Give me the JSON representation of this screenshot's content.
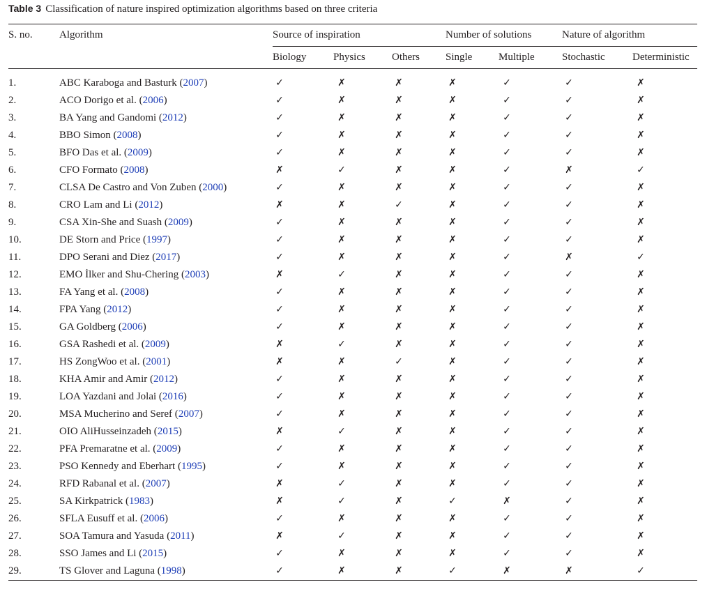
{
  "caption": {
    "label": "Table 3",
    "text": "Classification of nature inspired optimization algorithms based on three criteria"
  },
  "headers": {
    "sno": "S. no.",
    "algorithm": "Algorithm",
    "group_source": "Source of inspiration",
    "group_solutions": "Number of solutions",
    "group_nature": "Nature of algorithm",
    "biology": "Biology",
    "physics": "Physics",
    "others": "Others",
    "single": "Single",
    "multiple": "Multiple",
    "stochastic": "Stochastic",
    "deterministic": "Deterministic"
  },
  "symbols": {
    "yes": "✓",
    "no": "✗"
  },
  "colors": {
    "citation_link": "#1f3fb7",
    "text": "#231f20"
  },
  "rows": [
    {
      "sno": "1.",
      "name": "ABC Karaboga and Basturk (",
      "year": "2007",
      "close": ")",
      "marks": [
        "yes",
        "no",
        "no",
        "no",
        "yes",
        "yes",
        "no"
      ]
    },
    {
      "sno": "2.",
      "name": "ACO Dorigo et al. (",
      "year": "2006",
      "close": ")",
      "marks": [
        "yes",
        "no",
        "no",
        "no",
        "yes",
        "yes",
        "no"
      ]
    },
    {
      "sno": "3.",
      "name": "BA Yang and Gandomi (",
      "year": "2012",
      "close": ")",
      "marks": [
        "yes",
        "no",
        "no",
        "no",
        "yes",
        "yes",
        "no"
      ]
    },
    {
      "sno": "4.",
      "name": "BBO Simon (",
      "year": "2008",
      "close": ")",
      "marks": [
        "yes",
        "no",
        "no",
        "no",
        "yes",
        "yes",
        "no"
      ]
    },
    {
      "sno": "5.",
      "name": "BFO Das et al. (",
      "year": "2009",
      "close": ")",
      "marks": [
        "yes",
        "no",
        "no",
        "no",
        "yes",
        "yes",
        "no"
      ]
    },
    {
      "sno": "6.",
      "name": "CFO Formato (",
      "year": "2008",
      "close": ")",
      "marks": [
        "no",
        "yes",
        "no",
        "no",
        "yes",
        "no",
        "yes"
      ]
    },
    {
      "sno": "7.",
      "name": "CLSA De Castro and Von Zuben (",
      "year": "2000",
      "close": ")",
      "marks": [
        "yes",
        "no",
        "no",
        "no",
        "yes",
        "yes",
        "no"
      ]
    },
    {
      "sno": "8.",
      "name": "CRO Lam and Li (",
      "year": "2012",
      "close": ")",
      "marks": [
        "no",
        "no",
        "yes",
        "no",
        "yes",
        "yes",
        "no"
      ]
    },
    {
      "sno": "9.",
      "name": "CSA Xin-She and Suash (",
      "year": "2009",
      "close": ")",
      "marks": [
        "yes",
        "no",
        "no",
        "no",
        "yes",
        "yes",
        "no"
      ]
    },
    {
      "sno": "10.",
      "name": "DE Storn and Price (",
      "year": "1997",
      "close": ")",
      "marks": [
        "yes",
        "no",
        "no",
        "no",
        "yes",
        "yes",
        "no"
      ]
    },
    {
      "sno": "11.",
      "name": "DPO Serani and Diez (",
      "year": "2017",
      "close": ")",
      "marks": [
        "yes",
        "no",
        "no",
        "no",
        "yes",
        "no",
        "yes"
      ]
    },
    {
      "sno": "12.",
      "name": "EMO İlker and Shu-Chering (",
      "year": "2003",
      "close": ")",
      "marks": [
        "no",
        "yes",
        "no",
        "no",
        "yes",
        "yes",
        "no"
      ]
    },
    {
      "sno": "13.",
      "name": "FA Yang et al. (",
      "year": "2008",
      "close": ")",
      "marks": [
        "yes",
        "no",
        "no",
        "no",
        "yes",
        "yes",
        "no"
      ]
    },
    {
      "sno": "14.",
      "name": "FPA Yang (",
      "year": "2012",
      "close": ")",
      "marks": [
        "yes",
        "no",
        "no",
        "no",
        "yes",
        "yes",
        "no"
      ]
    },
    {
      "sno": "15.",
      "name": "GA Goldberg (",
      "year": "2006",
      "close": ")",
      "marks": [
        "yes",
        "no",
        "no",
        "no",
        "yes",
        "yes",
        "no"
      ]
    },
    {
      "sno": "16.",
      "name": "GSA Rashedi et al. (",
      "year": "2009",
      "close": ")",
      "marks": [
        "no",
        "yes",
        "no",
        "no",
        "yes",
        "yes",
        "no"
      ]
    },
    {
      "sno": "17.",
      "name": "HS ZongWoo et al. (",
      "year": "2001",
      "close": ")",
      "marks": [
        "no",
        "no",
        "yes",
        "no",
        "yes",
        "yes",
        "no"
      ]
    },
    {
      "sno": "18.",
      "name": "KHA Amir and Amir (",
      "year": "2012",
      "close": ")",
      "marks": [
        "yes",
        "no",
        "no",
        "no",
        "yes",
        "yes",
        "no"
      ]
    },
    {
      "sno": "19.",
      "name": "LOA Yazdani and Jolai (",
      "year": "2016",
      "close": ")",
      "marks": [
        "yes",
        "no",
        "no",
        "no",
        "yes",
        "yes",
        "no"
      ]
    },
    {
      "sno": "20.",
      "name": "MSA Mucherino and Seref (",
      "year": "2007",
      "close": ")",
      "marks": [
        "yes",
        "no",
        "no",
        "no",
        "yes",
        "yes",
        "no"
      ]
    },
    {
      "sno": "21.",
      "name": "OIO AliHusseinzadeh (",
      "year": "2015",
      "close": ")",
      "marks": [
        "no",
        "yes",
        "no",
        "no",
        "yes",
        "yes",
        "no"
      ]
    },
    {
      "sno": "22.",
      "name": "PFA Premaratne et al. (",
      "year": "2009",
      "close": ")",
      "marks": [
        "yes",
        "no",
        "no",
        "no",
        "yes",
        "yes",
        "no"
      ]
    },
    {
      "sno": "23.",
      "name": "PSO Kennedy and Eberhart (",
      "year": "1995",
      "close": ")",
      "marks": [
        "yes",
        "no",
        "no",
        "no",
        "yes",
        "yes",
        "no"
      ]
    },
    {
      "sno": "24.",
      "name": "RFD Rabanal et al. (",
      "year": "2007",
      "close": ")",
      "marks": [
        "no",
        "yes",
        "no",
        "no",
        "yes",
        "yes",
        "no"
      ]
    },
    {
      "sno": "25.",
      "name": "SA Kirkpatrick (",
      "year": "1983",
      "close": ")",
      "marks": [
        "no",
        "yes",
        "no",
        "yes",
        "no",
        "yes",
        "no"
      ]
    },
    {
      "sno": "26.",
      "name": "SFLA Eusuff et al. (",
      "year": "2006",
      "close": ")",
      "marks": [
        "yes",
        "no",
        "no",
        "no",
        "yes",
        "yes",
        "no"
      ]
    },
    {
      "sno": "27.",
      "name": "SOA Tamura and Yasuda (",
      "year": "2011",
      "close": ")",
      "marks": [
        "no",
        "yes",
        "no",
        "no",
        "yes",
        "yes",
        "no"
      ]
    },
    {
      "sno": "28.",
      "name": "SSO James and Li (",
      "year": "2015",
      "close": ")",
      "marks": [
        "yes",
        "no",
        "no",
        "no",
        "yes",
        "yes",
        "no"
      ]
    },
    {
      "sno": "29.",
      "name": "TS Glover and Laguna (",
      "year": "1998",
      "close": ")",
      "marks": [
        "yes",
        "no",
        "no",
        "yes",
        "no",
        "no",
        "yes"
      ]
    }
  ]
}
